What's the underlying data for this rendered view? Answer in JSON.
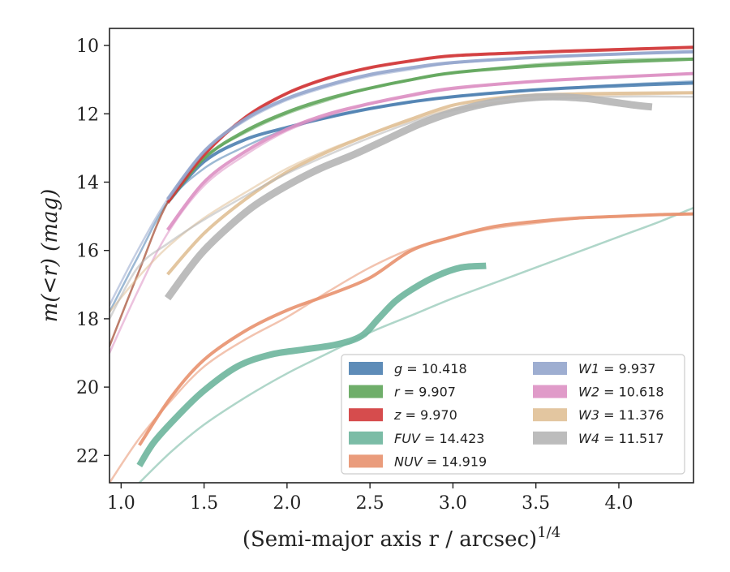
{
  "chart_data": {
    "type": "line",
    "xlabel": "(Semi-major axis r / arcsec)",
    "xlabel_exponent": "1/4",
    "ylabel": "m(<r) (mag)",
    "xlim": [
      0.93,
      4.45
    ],
    "ylim": [
      22.8,
      9.5
    ],
    "y_inverted": true,
    "grid": false,
    "legend_placement": "lower-right",
    "x_ticks": [
      1.0,
      1.5,
      2.0,
      2.5,
      3.0,
      3.5,
      4.0
    ],
    "x_tick_labels": [
      "1.0",
      "1.5",
      "2.0",
      "2.5",
      "3.0",
      "3.5",
      "4.0"
    ],
    "y_ticks": [
      10,
      12,
      14,
      16,
      18,
      20,
      22
    ],
    "y_tick_labels": [
      "10",
      "12",
      "14",
      "16",
      "18",
      "20",
      "22"
    ],
    "series": [
      {
        "name": "g = 10.418",
        "band": "g",
        "total": "10.418",
        "color": "#4C7FB0",
        "x": [
          1.28,
          1.5,
          1.75,
          2.0,
          2.25,
          2.5,
          2.75,
          3.0,
          3.5,
          4.0,
          4.45
        ],
        "y": [
          14.6,
          13.4,
          12.75,
          12.4,
          12.1,
          11.85,
          11.65,
          11.5,
          11.3,
          11.18,
          11.1
        ],
        "width": 4,
        "model_x": [
          0.93,
          1.1,
          1.28,
          1.5,
          1.75,
          2.0,
          2.25,
          2.5,
          2.75,
          3.0,
          3.5,
          4.0,
          4.45
        ],
        "model_y": [
          17.8,
          16.2,
          14.6,
          13.6,
          12.95,
          12.45,
          12.1,
          11.85,
          11.65,
          11.5,
          11.3,
          11.15,
          11.05
        ]
      },
      {
        "name": "r = 9.907",
        "band": "r",
        "total": "9.907",
        "color": "#5FA55A",
        "x": [
          1.28,
          1.5,
          1.75,
          2.0,
          2.25,
          2.5,
          2.75,
          3.0,
          3.5,
          4.0,
          4.45
        ],
        "y": [
          14.6,
          13.3,
          12.5,
          11.95,
          11.55,
          11.25,
          11.0,
          10.8,
          10.6,
          10.48,
          10.4
        ],
        "width": 4,
        "model_x": [
          0.93,
          1.1,
          1.28,
          1.5,
          1.75,
          2.0,
          2.25,
          2.5,
          2.75,
          3.0,
          3.5,
          4.0,
          4.45
        ],
        "model_y": [
          18.8,
          16.7,
          14.6,
          13.3,
          12.55,
          12.0,
          11.6,
          11.25,
          11.0,
          10.8,
          10.55,
          10.42,
          10.38
        ]
      },
      {
        "name": "z = 9.970",
        "band": "z",
        "total": "9.970",
        "color": "#D1393A",
        "x": [
          1.28,
          1.5,
          1.75,
          2.0,
          2.25,
          2.5,
          2.75,
          3.0,
          3.5,
          4.0,
          4.45
        ],
        "y": [
          14.6,
          13.2,
          12.1,
          11.4,
          10.95,
          10.65,
          10.45,
          10.3,
          10.2,
          10.12,
          10.05
        ],
        "width": 4,
        "model_x": [
          0.93,
          1.1,
          1.28,
          1.5,
          1.75,
          2.0,
          2.25,
          2.5,
          2.75,
          3.0,
          3.5,
          4.0,
          4.45
        ],
        "model_y": [
          18.8,
          16.7,
          14.6,
          13.2,
          12.1,
          11.4,
          10.95,
          10.65,
          10.45,
          10.3,
          10.18,
          10.1,
          10.05
        ]
      },
      {
        "name": "FUV = 14.423",
        "band": "FUV",
        "total": "14.423",
        "color": "#6DB59C",
        "x": [
          1.11,
          1.2,
          1.35,
          1.5,
          1.7,
          1.9,
          2.1,
          2.3,
          2.45,
          2.55,
          2.65,
          2.75,
          2.9,
          3.05,
          3.2
        ],
        "y": [
          22.3,
          21.6,
          20.8,
          20.1,
          19.4,
          19.05,
          18.9,
          18.75,
          18.5,
          18.0,
          17.5,
          17.15,
          16.75,
          16.5,
          16.45
        ],
        "width": 8,
        "model_x": [
          1.11,
          1.3,
          1.5,
          1.75,
          2.0,
          2.25,
          2.5,
          2.75,
          3.0,
          3.25,
          3.5,
          3.75,
          4.0,
          4.25,
          4.45
        ],
        "model_y": [
          22.8,
          21.9,
          21.1,
          20.3,
          19.6,
          19.0,
          18.4,
          17.9,
          17.4,
          16.95,
          16.5,
          16.05,
          15.6,
          15.15,
          14.75
        ]
      },
      {
        "name": "NUV = 14.919",
        "band": "NUV",
        "total": "14.919",
        "color": "#E8916E",
        "x": [
          1.11,
          1.3,
          1.5,
          1.75,
          2.0,
          2.25,
          2.5,
          2.75,
          3.0,
          3.25,
          3.5,
          3.75,
          4.0,
          4.25,
          4.45
        ],
        "y": [
          21.7,
          20.3,
          19.2,
          18.35,
          17.75,
          17.3,
          16.8,
          16.0,
          15.6,
          15.3,
          15.15,
          15.05,
          15.0,
          14.95,
          14.93
        ],
        "width": 4,
        "model_x": [
          0.93,
          1.11,
          1.3,
          1.5,
          1.75,
          2.0,
          2.25,
          2.5,
          2.75,
          3.0,
          3.25,
          3.5,
          3.75,
          4.0,
          4.25,
          4.45
        ],
        "model_y": [
          22.8,
          21.5,
          20.4,
          19.4,
          18.6,
          17.95,
          17.2,
          16.5,
          15.95,
          15.6,
          15.35,
          15.2,
          15.07,
          15.0,
          14.95,
          14.93
        ]
      },
      {
        "name": "W1 = 9.937",
        "band": "W1",
        "total": "9.937",
        "color": "#94A5CC",
        "x": [
          1.28,
          1.5,
          1.75,
          2.0,
          2.25,
          2.5,
          2.75,
          3.0,
          3.5,
          4.0,
          4.45
        ],
        "y": [
          14.5,
          13.1,
          12.15,
          11.55,
          11.15,
          10.85,
          10.65,
          10.5,
          10.35,
          10.25,
          10.18
        ],
        "width": 4,
        "model_x": [
          0.93,
          1.1,
          1.28,
          1.5,
          1.75,
          2.0,
          2.25,
          2.5,
          2.75,
          3.0,
          3.5,
          4.0,
          4.45
        ],
        "model_y": [
          17.6,
          16.0,
          14.5,
          13.1,
          12.2,
          11.6,
          11.2,
          10.9,
          10.7,
          10.52,
          10.35,
          10.25,
          10.2
        ]
      },
      {
        "name": "W2 = 10.618",
        "band": "W2",
        "total": "10.618",
        "color": "#DD90C3",
        "x": [
          1.28,
          1.5,
          1.75,
          2.0,
          2.25,
          2.5,
          2.75,
          3.0,
          3.5,
          4.0,
          4.45
        ],
        "y": [
          15.4,
          14.0,
          13.1,
          12.45,
          12.0,
          11.7,
          11.45,
          11.25,
          11.05,
          10.92,
          10.82
        ],
        "width": 4,
        "model_x": [
          0.93,
          1.1,
          1.28,
          1.5,
          1.75,
          2.0,
          2.25,
          2.5,
          2.75,
          3.0,
          3.5,
          4.0,
          4.45
        ],
        "model_y": [
          19.0,
          17.2,
          15.5,
          14.1,
          13.2,
          12.5,
          12.05,
          11.72,
          11.48,
          11.28,
          11.05,
          10.92,
          10.82
        ]
      },
      {
        "name": "W3 = 11.376",
        "band": "W3",
        "total": "11.376",
        "color": "#E0C096",
        "x": [
          1.28,
          1.5,
          1.75,
          2.0,
          2.25,
          2.5,
          2.75,
          3.0,
          3.25,
          3.5,
          3.75,
          4.0,
          4.45
        ],
        "y": [
          16.7,
          15.5,
          14.5,
          13.7,
          13.1,
          12.6,
          12.15,
          11.75,
          11.55,
          11.45,
          11.42,
          11.4,
          11.38
        ],
        "width": 4,
        "model_x": [
          0.93,
          1.1,
          1.28,
          1.5,
          1.75,
          2.0,
          2.25,
          2.5,
          2.75,
          3.0,
          3.5,
          4.0,
          4.45
        ],
        "model_y": [
          17.8,
          16.8,
          15.9,
          15.05,
          14.3,
          13.6,
          13.05,
          12.6,
          12.2,
          11.85,
          11.55,
          11.45,
          11.4
        ]
      },
      {
        "name": "W4 = 11.517",
        "band": "W4",
        "total": "11.517",
        "color": "#B5B5B5",
        "x": [
          1.28,
          1.4,
          1.5,
          1.65,
          1.8,
          2.0,
          2.2,
          2.4,
          2.6,
          2.8,
          3.0,
          3.2,
          3.4,
          3.6,
          3.8,
          3.95,
          4.1,
          4.2
        ],
        "y": [
          17.4,
          16.6,
          16.0,
          15.3,
          14.7,
          14.1,
          13.6,
          13.2,
          12.75,
          12.3,
          11.95,
          11.7,
          11.55,
          11.5,
          11.55,
          11.65,
          11.75,
          11.8
        ],
        "width": 9,
        "model_x": [
          0.93,
          1.1,
          1.28,
          1.5,
          1.75,
          2.0,
          2.25,
          2.5,
          2.75,
          3.0,
          3.5,
          4.0,
          4.45
        ],
        "model_y": [
          18.0,
          16.5,
          15.8,
          15.1,
          14.4,
          13.75,
          13.2,
          12.7,
          12.25,
          11.9,
          11.6,
          11.5,
          11.5
        ]
      }
    ]
  }
}
